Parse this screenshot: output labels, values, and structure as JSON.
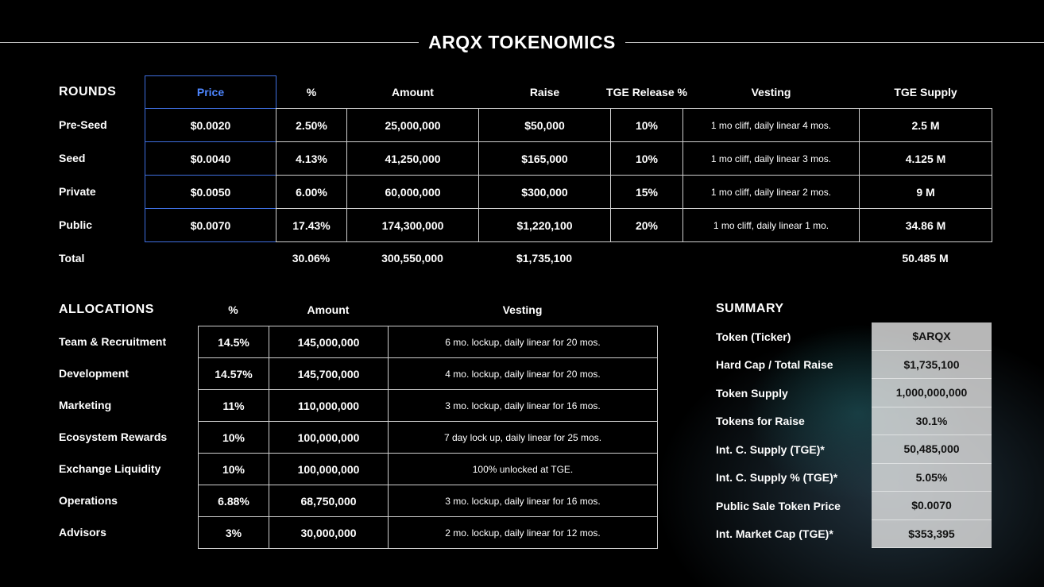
{
  "title": "ARQX TOKENOMICS",
  "rounds": {
    "heading": "ROUNDS",
    "columns": [
      "Price",
      "%",
      "Amount",
      "Raise",
      "TGE Release %",
      "Vesting",
      "TGE Supply"
    ],
    "rows": [
      [
        "Pre-Seed",
        "$0.0020",
        "2.50%",
        "25,000,000",
        "$50,000",
        "10%",
        "1 mo cliff, daily linear 4 mos.",
        "2.5 M"
      ],
      [
        "Seed",
        "$0.0040",
        "4.13%",
        "41,250,000",
        "$165,000",
        "10%",
        "1 mo cliff, daily linear 3 mos.",
        "4.125 M"
      ],
      [
        "Private",
        "$0.0050",
        "6.00%",
        "60,000,000",
        "$300,000",
        "15%",
        "1 mo cliff, daily linear 2 mos.",
        "9 M"
      ],
      [
        "Public",
        "$0.0070",
        "17.43%",
        "174,300,000",
        "$1,220,100",
        "20%",
        "1 mo cliff, daily linear 1 mo.",
        "34.86 M"
      ]
    ],
    "total": {
      "label": "Total",
      "percent": "30.06%",
      "amount": "300,550,000",
      "raise": "$1,735,100",
      "tge_supply": "50.485 M"
    }
  },
  "allocations": {
    "heading": "ALLOCATIONS",
    "columns": [
      "%",
      "Amount",
      "Vesting"
    ],
    "rows": [
      [
        "Team & Recruitment",
        "14.5%",
        "145,000,000",
        "6 mo. lockup, daily linear for 20 mos."
      ],
      [
        "Development",
        "14.57%",
        "145,700,000",
        "4 mo. lockup, daily linear for 20 mos."
      ],
      [
        "Marketing",
        "11%",
        "110,000,000",
        "3 mo. lockup, daily linear for 16 mos."
      ],
      [
        "Ecosystem Rewards",
        "10%",
        "100,000,000",
        "7 day lock up, daily linear for 25 mos."
      ],
      [
        "Exchange Liquidity",
        "10%",
        "100,000,000",
        "100% unlocked at TGE."
      ],
      [
        "Operations",
        "6.88%",
        "68,750,000",
        "3 mo. lockup, daily linear for 16 mos."
      ],
      [
        "Advisors",
        "3%",
        "30,000,000",
        "2 mo. lockup, daily linear for 12 mos."
      ]
    ]
  },
  "summary": {
    "heading": "SUMMARY",
    "rows": [
      [
        "Token (Ticker)",
        "$ARQX"
      ],
      [
        "Hard Cap / Total Raise",
        "$1,735,100"
      ],
      [
        "Token Supply",
        "1,000,000,000"
      ],
      [
        "Tokens for Raise",
        "30.1%"
      ],
      [
        "Int. C. Supply (TGE)*",
        "50,485,000"
      ],
      [
        "Int. C. Supply % (TGE)*",
        "5.05%"
      ],
      [
        "Public Sale Token Price",
        "$0.0070"
      ],
      [
        "Int. Market Cap (TGE)*",
        "$353,395"
      ]
    ]
  }
}
